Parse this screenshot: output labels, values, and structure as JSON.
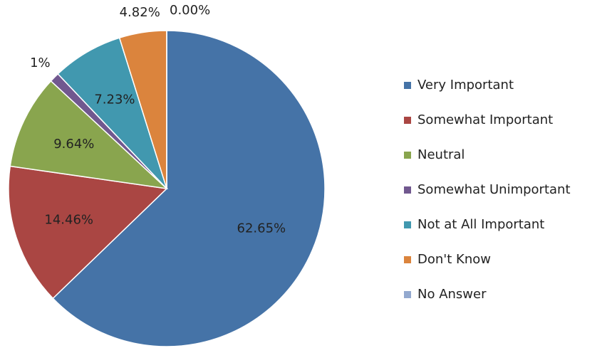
{
  "chart_data": {
    "type": "pie",
    "categories": [
      "Very Important",
      "Somewhat Important",
      "Neutral",
      "Somewhat Unimportant",
      "Not at All Important",
      "Don't Know",
      "No Answer"
    ],
    "values": [
      62.65,
      14.46,
      9.64,
      1,
      7.23,
      4.82,
      0
    ],
    "value_labels": [
      "62.65%",
      "14.46%",
      "9.64%",
      "1%",
      "7.23%",
      "4.82%",
      "0.00%"
    ],
    "colors": [
      "#4573a7",
      "#aa4643",
      "#89a54e",
      "#71588f",
      "#4198af",
      "#db843d",
      "#93a9cf"
    ],
    "legend": "right"
  }
}
